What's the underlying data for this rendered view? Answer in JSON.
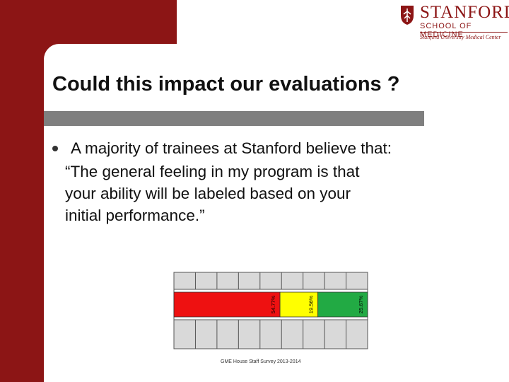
{
  "logo": {
    "wordmark": "STANFORD",
    "school": "SCHOOL OF MEDICINE",
    "center": "Stanford University Medical Center"
  },
  "slide": {
    "title": "Could this impact our evaluations ?",
    "bullet_intro": "A majority of trainees at Stanford believe that:",
    "bullet_quote": "“The general feeling in my program is that\nyour ability will be labeled based on your\ninitial performance.”"
  },
  "chart_data": {
    "type": "bar",
    "orientation": "horizontal-stacked",
    "categories": [
      ""
    ],
    "series": [
      {
        "values": [
          54.77
        ],
        "label": "54.77%",
        "color": "#ee1111"
      },
      {
        "values": [
          19.56
        ],
        "label": "19.56%",
        "color": "#ffff00"
      },
      {
        "values": [
          25.67
        ],
        "label": "25.67%",
        "color": "#22aa44"
      }
    ],
    "xlim": [
      0,
      100
    ],
    "grid": true,
    "caption": "GME House Staff Survey 2013-2014"
  }
}
